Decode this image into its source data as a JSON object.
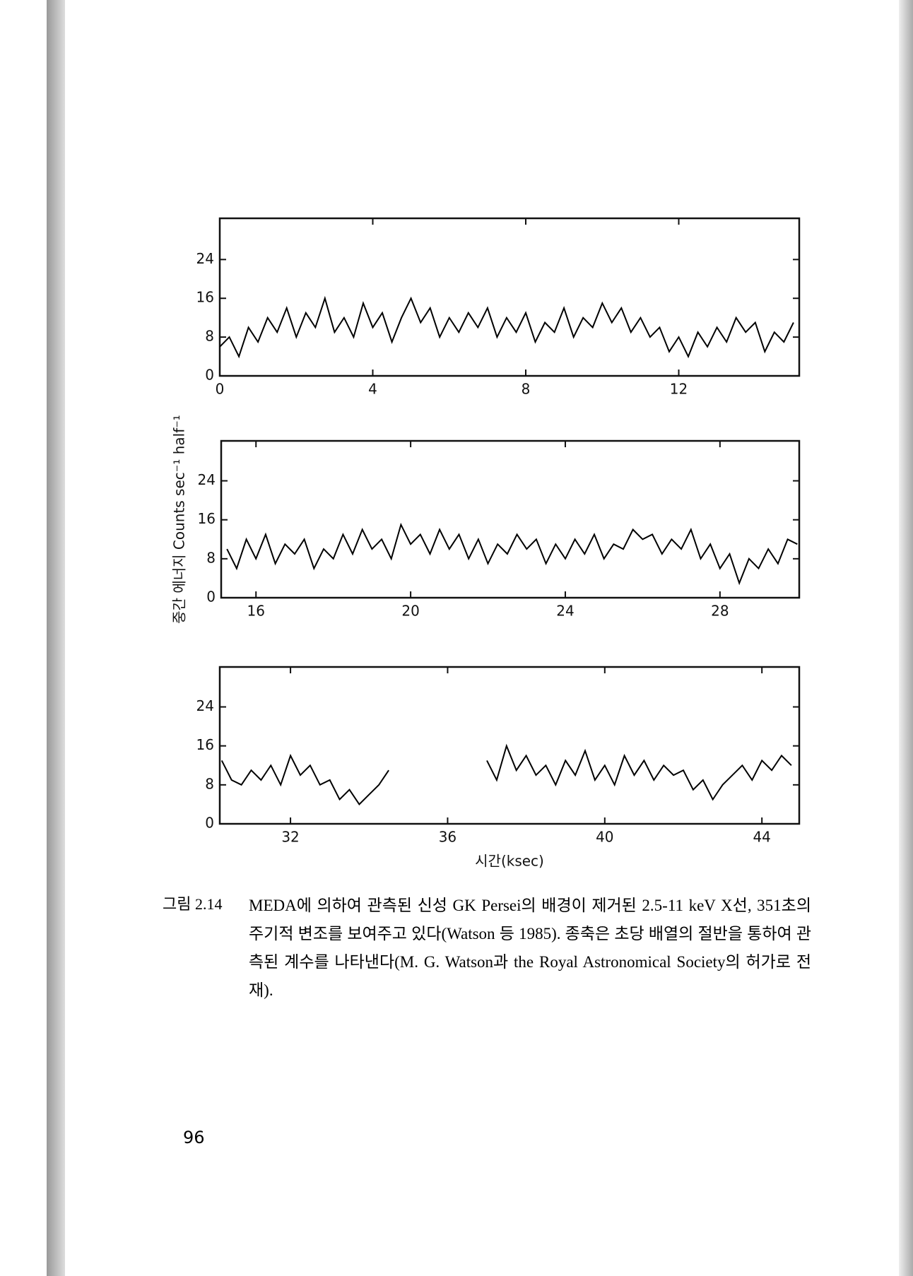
{
  "chart_data": [
    {
      "type": "line",
      "x": [
        0,
        0.25,
        0.5,
        0.75,
        1,
        1.25,
        1.5,
        1.75,
        2,
        2.25,
        2.5,
        2.75,
        3,
        3.25,
        3.5,
        3.75,
        4,
        4.25,
        4.5,
        4.75,
        5,
        5.25,
        5.5,
        5.75,
        6,
        6.25,
        6.5,
        6.75,
        7,
        7.25,
        7.5,
        7.75,
        8,
        8.25,
        8.5,
        8.75,
        9,
        9.25,
        9.5,
        9.75,
        10,
        10.25,
        10.5,
        10.75,
        11,
        11.25,
        11.5,
        11.75,
        12,
        12.25,
        12.5,
        12.75,
        13,
        13.25,
        13.5,
        13.75,
        14,
        14.25,
        14.5,
        14.75,
        15
      ],
      "series": [
        {
          "color": "#000000",
          "values": [
            6,
            8,
            4,
            10,
            7,
            12,
            9,
            14,
            8,
            13,
            10,
            16,
            9,
            12,
            8,
            15,
            10,
            13,
            7,
            12,
            16,
            11,
            14,
            8,
            12,
            9,
            13,
            10,
            14,
            8,
            12,
            9,
            13,
            7,
            11,
            9,
            14,
            8,
            12,
            10,
            15,
            11,
            14,
            9,
            12,
            8,
            10,
            5,
            8,
            4,
            9,
            6,
            10,
            7,
            12,
            9,
            11,
            5,
            9,
            7,
            11
          ]
        }
      ],
      "xlim": [
        0,
        15.15
      ],
      "ylim": [
        0,
        32.5
      ],
      "xticks": [
        0,
        4,
        8,
        12
      ],
      "yticks": [
        0,
        8,
        16,
        24
      ]
    },
    {
      "type": "line",
      "ylabel": "중간 에너지 Counts sec⁻¹ half⁻¹",
      "x": [
        15.25,
        15.5,
        15.75,
        16,
        16.25,
        16.5,
        16.75,
        17,
        17.25,
        17.5,
        17.75,
        18,
        18.25,
        18.5,
        18.75,
        19,
        19.25,
        19.5,
        19.75,
        20,
        20.25,
        20.5,
        20.75,
        21,
        21.25,
        21.5,
        21.75,
        22,
        22.25,
        22.5,
        22.75,
        23,
        23.25,
        23.5,
        23.75,
        24,
        24.25,
        24.5,
        24.75,
        25,
        25.25,
        25.5,
        25.75,
        26,
        26.25,
        26.5,
        26.75,
        27,
        27.25,
        27.5,
        27.75,
        28,
        28.25,
        28.5,
        28.75,
        29,
        29.25,
        29.5,
        29.75,
        30
      ],
      "series": [
        {
          "color": "#000000",
          "values": [
            10,
            6,
            12,
            8,
            13,
            7,
            11,
            9,
            12,
            6,
            10,
            8,
            13,
            9,
            14,
            10,
            12,
            8,
            15,
            11,
            13,
            9,
            14,
            10,
            13,
            8,
            12,
            7,
            11,
            9,
            13,
            10,
            12,
            7,
            11,
            8,
            12,
            9,
            13,
            8,
            11,
            10,
            14,
            12,
            13,
            9,
            12,
            10,
            14,
            8,
            11,
            6,
            9,
            3,
            8,
            6,
            10,
            7,
            12,
            11
          ]
        }
      ],
      "xlim": [
        15.1,
        30.05
      ],
      "ylim": [
        0,
        32.2
      ],
      "xticks": [
        16,
        20,
        24,
        28
      ],
      "yticks": [
        0,
        8,
        16,
        24
      ]
    },
    {
      "type": "line",
      "xlabel": "시간(ksec)",
      "x": [
        30.25,
        30.5,
        30.75,
        31,
        31.25,
        31.5,
        31.75,
        32,
        32.25,
        32.5,
        32.75,
        33,
        33.25,
        33.5,
        33.75,
        34,
        34.25,
        34.5,
        34.75,
        35,
        35.25,
        35.5,
        35.75,
        36,
        36.25,
        36.5,
        36.75,
        37,
        37.25,
        37.5,
        37.75,
        38,
        38.25,
        38.5,
        38.75,
        39,
        39.25,
        39.5,
        39.75,
        40,
        40.25,
        40.5,
        40.75,
        41,
        41.25,
        41.5,
        41.75,
        42,
        42.25,
        42.5,
        42.75,
        43,
        43.25,
        43.5,
        43.75,
        44,
        44.25,
        44.5,
        44.75
      ],
      "series": [
        {
          "color": "#000000",
          "values": [
            13,
            9,
            8,
            11,
            9,
            12,
            8,
            14,
            10,
            12,
            8,
            9,
            5,
            7,
            4,
            6,
            8,
            11,
            null,
            null,
            null,
            null,
            null,
            null,
            null,
            null,
            null,
            13,
            9,
            16,
            11,
            14,
            10,
            12,
            8,
            13,
            10,
            15,
            9,
            12,
            8,
            14,
            10,
            13,
            9,
            12,
            10,
            11,
            7,
            9,
            5,
            8,
            10,
            12,
            9,
            13,
            11,
            14,
            12
          ]
        }
      ],
      "xlim": [
        30.2,
        44.95
      ],
      "ylim": [
        0,
        32.2
      ],
      "xticks": [
        32,
        36,
        40,
        44
      ],
      "yticks": [
        0,
        8,
        16,
        24
      ]
    }
  ],
  "figure": {
    "label": "그림 2.14",
    "caption": "MEDA에 의하여 관측된 신성 GK Persei의 배경이 제거된 2.5-11 keV X선, 351초의 주기적 변조를 보여주고 있다(Watson 등 1985). 종축은 초당 배열의 절반을 통하여 관측된 계수를 나타낸다(M. G. Watson과 the Royal Astronomical Society의 허가로 전재)."
  },
  "page_number": "96"
}
